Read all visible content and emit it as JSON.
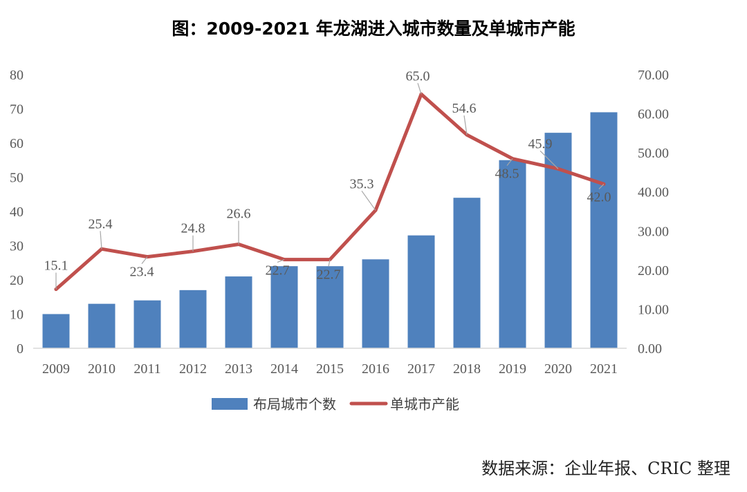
{
  "title": "图：2009-2021 年龙湖进入城市数量及单城市产能",
  "source": "数据来源：企业年报、CRIC 整理",
  "colors": {
    "bar": "#4F81BD",
    "line": "#C0504D",
    "axis": "#D9D9D9",
    "tick_text": "#595959",
    "leader": "#A6A6A6"
  },
  "chart_data": {
    "type": "bar",
    "categories": [
      "2009",
      "2010",
      "2011",
      "2012",
      "2013",
      "2014",
      "2015",
      "2016",
      "2017",
      "2018",
      "2019",
      "2020",
      "2021"
    ],
    "series": [
      {
        "name": "布局城市个数",
        "type": "bar",
        "axis": "left",
        "values": [
          10,
          13,
          14,
          17,
          21,
          24,
          24,
          26,
          33,
          44,
          55,
          63,
          69
        ]
      },
      {
        "name": "单城市产能",
        "type": "line",
        "axis": "right",
        "values": [
          15.1,
          25.4,
          23.4,
          24.8,
          26.6,
          22.7,
          22.7,
          35.3,
          65.0,
          54.6,
          48.5,
          45.9,
          42.0
        ],
        "labels": [
          "15.1",
          "25.4",
          "23.4",
          "24.8",
          "26.6",
          "22.7",
          "22.7",
          "35.3",
          "65.0",
          "54.6",
          "48.5",
          "45.9",
          "42.0"
        ]
      }
    ],
    "y_left": {
      "min": 0,
      "max": 80,
      "ticks": [
        "0",
        "10",
        "20",
        "30",
        "40",
        "50",
        "60",
        "70",
        "80"
      ]
    },
    "y_right": {
      "min": 0,
      "max": 70,
      "ticks": [
        "0.00",
        "10.00",
        "20.00",
        "30.00",
        "40.00",
        "50.00",
        "60.00",
        "70.00"
      ]
    },
    "grid": false,
    "legend": "bottom"
  }
}
